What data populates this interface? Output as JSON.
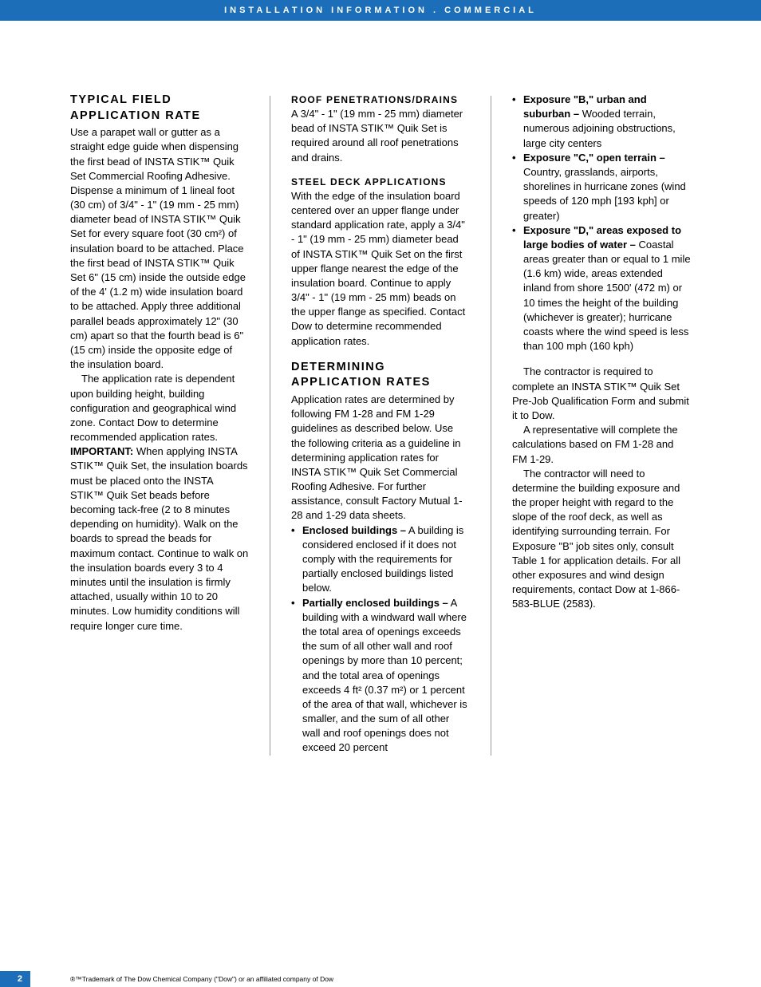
{
  "colors": {
    "header_bg": "#1b6eb7",
    "header_text": "#ffffff",
    "body_text": "#000000",
    "divider": "#999999",
    "page_bg": "#ffffff"
  },
  "header": {
    "text": "INSTALLATION INFORMATION . COMMERCIAL"
  },
  "column1": {
    "heading": "TYPICAL FIELD APPLICATION RATE",
    "para1": "Use a parapet wall or gutter as a straight edge guide when dispensing the first bead of INSTA STIK™ Quik Set Commercial Roofing Adhesive. Dispense a minimum of 1 lineal foot (30 cm) of 3/4\" - 1\" (19 mm - 25 mm) diameter bead of INSTA STIK™ Quik Set for every square foot (30 cm²) of insulation board to be attached. Place the first bead of INSTA STIK™ Quik Set 6\" (15 cm) inside the outside edge of the 4' (1.2 m) wide insulation board to be attached. Apply three additional parallel beads approximately 12\" (30 cm) apart so that the fourth bead is 6\" (15 cm) inside the opposite edge of the insulation board.",
    "para2": "The application rate is dependent upon building height, building configuration and geographical wind zone. Contact Dow to determine recommended application rates.",
    "important_label": "IMPORTANT:",
    "important_text": " When applying INSTA STIK™ Quik Set, the insulation boards must be placed onto the INSTA STIK™ Quik Set beads before becoming tack-free (2 to 8 minutes depending on humidity). Walk on the boards to spread the beads for maximum contact. Continue to walk on the insulation boards every 3 to 4 minutes until the insulation is firmly attached, usually within 10 to 20 minutes. Low humidity conditions will require longer cure time."
  },
  "column2": {
    "heading1": "ROOF PENETRATIONS/DRAINS",
    "para1": "A 3/4\" - 1\" (19 mm - 25 mm) diameter bead of INSTA STIK™ Quik Set is required around all roof penetrations and drains.",
    "heading2": "STEEL DECK APPLICATIONS",
    "para2": "With the edge of the insulation board centered over an upper flange under standard application rate, apply a 3/4\" - 1\" (19 mm - 25 mm) diameter bead of INSTA STIK™ Quik Set on the first upper flange nearest the edge of the insulation board. Continue to apply 3/4\" - 1\" (19 mm - 25 mm) beads on the upper flange as specified. Contact Dow to determine recommended application rates.",
    "heading3": "DETERMINING APPLICATION RATES",
    "para3": "Application rates are determined by following FM 1-28 and FM 1-29 guidelines as described below. Use the following criteria as a guideline in determining application rates for INSTA STIK™ Quik Set Commercial Roofing Adhesive. For further assistance, consult Factory Mutual 1-28 and 1-29 data sheets.",
    "bullets": [
      {
        "bold": "Enclosed buildings –",
        "text": " A building is considered enclosed if it does not comply with the requirements for partially enclosed buildings listed below."
      },
      {
        "bold": "Partially enclosed buildings –",
        "text": " A building with a windward wall where the total area of openings exceeds the sum of all other wall and roof openings by more than 10 percent; and the total area of openings exceeds 4 ft² (0.37 m²) or 1 percent of the area of that wall, whichever is smaller, and the sum of all other wall and roof openings does not exceed 20 percent"
      }
    ]
  },
  "column3": {
    "bullets": [
      {
        "bold": "Exposure \"B,\" urban and suburban –",
        "text": " Wooded terrain, numerous adjoining obstructions, large city centers"
      },
      {
        "bold": "Exposure \"C,\" open terrain –",
        "text": " Country, grasslands, airports, shorelines in hurricane zones (wind speeds of 120 mph [193 kph] or greater)"
      },
      {
        "bold": "Exposure \"D,\" areas exposed to large bodies of water –",
        "text": " Coastal areas greater than or equal to 1 mile (1.6 km) wide, areas extended inland from shore 1500' (472 m) or 10 times the height of the building (whichever is greater); hurricane coasts where the wind speed is less than 100 mph (160 kph)"
      }
    ],
    "para1": "The contractor is required to complete an INSTA STIK™ Quik Set Pre-Job Qualification Form and submit it to Dow.",
    "para2": "A representative will complete the calculations based on FM 1-28 and FM 1-29.",
    "para3": "The contractor will need to determine the building exposure and the proper height with regard to the slope of the roof deck, as well as identifying surrounding terrain. For Exposure \"B\" job sites only, consult Table 1 for application details. For all other exposures and wind design requirements, contact Dow at 1-866-583-BLUE (2583)."
  },
  "footer": {
    "page_number": "2",
    "trademark": "®™Trademark of The Dow Chemical Company (\"Dow\") or an affiliated company of Dow"
  }
}
